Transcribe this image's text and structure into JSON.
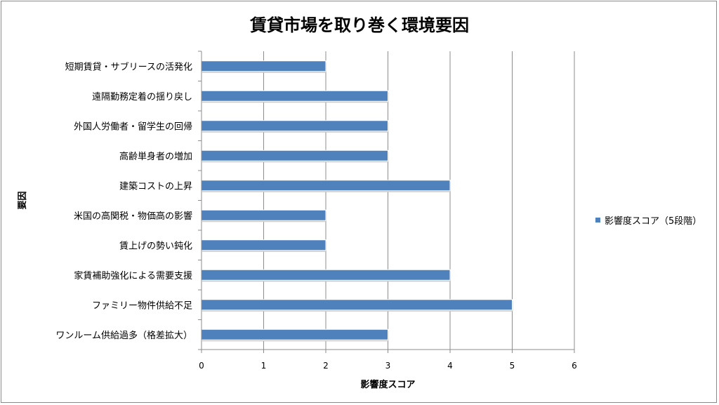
{
  "chart_data": {
    "type": "bar",
    "orientation": "horizontal",
    "title": "賃貸市場を取り巻く環境要因",
    "xlabel": "影響度スコア",
    "ylabel": "要因",
    "xlim": [
      0,
      6
    ],
    "xticks": [
      "0",
      "1",
      "2",
      "3",
      "4",
      "5",
      "6"
    ],
    "grid": true,
    "legend_position": "right",
    "categories": [
      "短期賃貸・サブリースの活発化",
      "遠隔勤務定着の揺り戻し",
      "外国人労働者・留学生の回帰",
      "高齢単身者の増加",
      "建築コストの上昇",
      "米国の高関税・物価高の影響",
      "賃上げの勢い鈍化",
      "家賃補助強化による需要支援",
      "ファミリー物件供給不足",
      "ワンルーム供給過多（格差拡大）"
    ],
    "series": [
      {
        "name": "影響度スコア（5段階）",
        "color": "#4f81bd",
        "values": [
          2,
          3,
          3,
          3,
          4,
          2,
          2,
          4,
          5,
          3
        ]
      }
    ]
  }
}
